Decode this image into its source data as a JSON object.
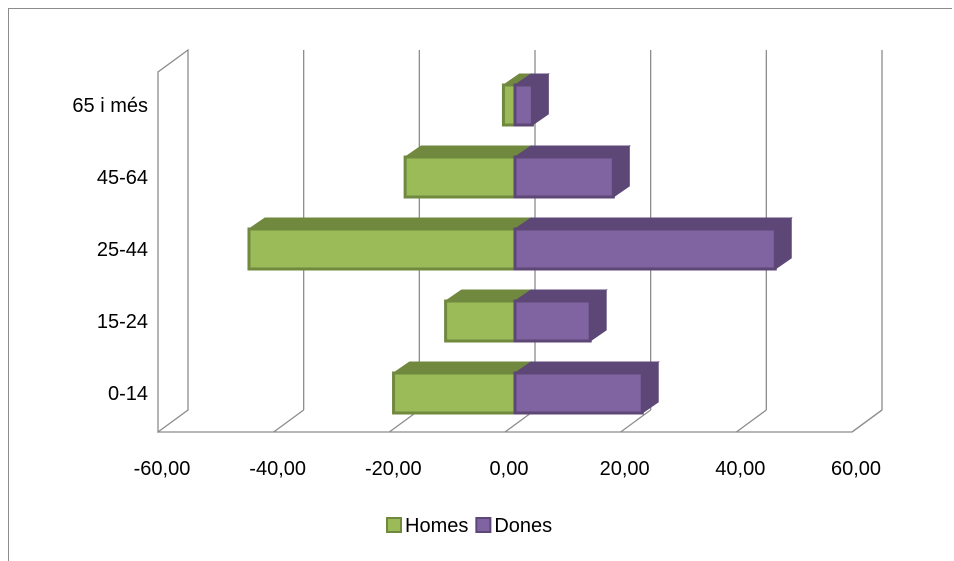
{
  "chart_data": {
    "type": "bar",
    "orientation": "horizontal",
    "style": "3d-clustered-back-to-back",
    "categories": [
      "0-14",
      "15-24",
      "25-44",
      "45-64",
      "65 i més"
    ],
    "series": [
      {
        "name": "Homes",
        "values": [
          -21,
          -12,
          -46,
          -19,
          -2
        ],
        "color": "#9bbb59",
        "edge_color": "#71893f"
      },
      {
        "name": "Dones",
        "values": [
          22,
          13,
          45,
          17,
          3
        ],
        "color": "#8064a2",
        "edge_color": "#5c4776"
      }
    ],
    "xlim": [
      -60,
      60
    ],
    "x_ticks": [
      "-60,00",
      "-40,00",
      "-20,00",
      "0,00",
      "20,00",
      "40,00",
      "60,00"
    ],
    "grid": true,
    "legend_position": "bottom",
    "title": "",
    "xlabel": "",
    "ylabel": ""
  }
}
